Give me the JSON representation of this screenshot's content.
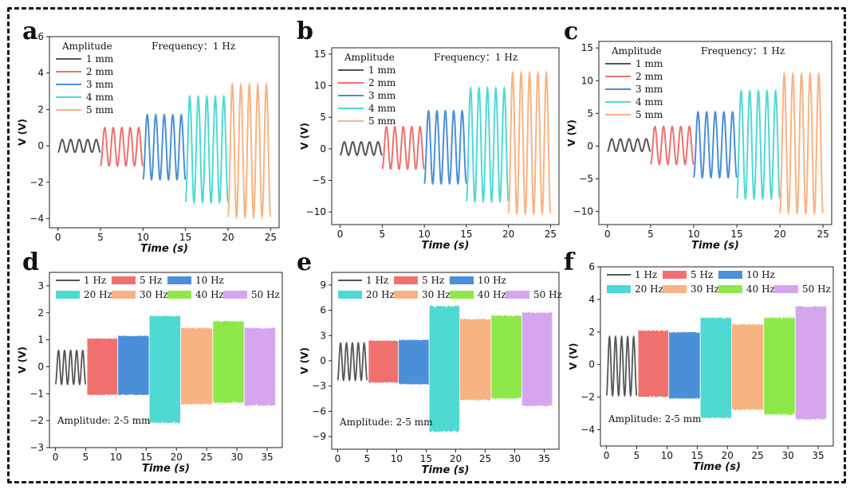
{
  "figure": {
    "series_colors": [
      "#555555",
      "#f07070",
      "#4a8fd8",
      "#4fd9d3",
      "#f8b382",
      "#8ee849",
      "#d5a6ee"
    ]
  },
  "chart_data": [
    {
      "id": "a",
      "type": "line",
      "panel_label": "a",
      "legend_title": "Amplitude",
      "annotation": "Frequency：1 Hz",
      "xlabel": "Time (s)",
      "ylabel": "V (V)",
      "xlim": [
        -1,
        26
      ],
      "ylim": [
        -4.5,
        6
      ],
      "xticks": [
        0,
        5,
        10,
        15,
        20,
        25
      ],
      "yticks": [
        -4,
        -2,
        0,
        2,
        4,
        6
      ],
      "series": [
        {
          "name": "1 mm",
          "x_range": [
            0,
            5
          ],
          "cycles": 5,
          "max": 0.35,
          "min": -0.35
        },
        {
          "name": "2 mm",
          "x_range": [
            5,
            10
          ],
          "cycles": 5,
          "max": 1.0,
          "min": -1.1
        },
        {
          "name": "3 mm",
          "x_range": [
            10,
            15
          ],
          "cycles": 5,
          "max": 1.7,
          "min": -1.85
        },
        {
          "name": "4 mm",
          "x_range": [
            15,
            20
          ],
          "cycles": 5,
          "max": 2.7,
          "min": -3.1
        },
        {
          "name": "5 mm",
          "x_range": [
            20,
            25
          ],
          "cycles": 5,
          "max": 3.35,
          "min": -3.9
        }
      ]
    },
    {
      "id": "b",
      "type": "line",
      "panel_label": "b",
      "legend_title": "Amplitude",
      "annotation": "Frequency：1 Hz",
      "xlabel": "Time (s)",
      "ylabel": "V (V)",
      "xlim": [
        -1,
        26
      ],
      "ylim": [
        -12,
        16
      ],
      "xticks": [
        0,
        5,
        10,
        15,
        20,
        25
      ],
      "yticks": [
        -10,
        -5,
        0,
        5,
        10,
        15
      ],
      "series": [
        {
          "name": "1 mm",
          "x_range": [
            0,
            5
          ],
          "cycles": 5,
          "max": 1.1,
          "min": -1.0
        },
        {
          "name": "2 mm",
          "x_range": [
            5,
            10
          ],
          "cycles": 5,
          "max": 3.5,
          "min": -3.2
        },
        {
          "name": "3 mm",
          "x_range": [
            10,
            15
          ],
          "cycles": 5,
          "max": 6.0,
          "min": -5.5
        },
        {
          "name": "4 mm",
          "x_range": [
            15,
            20
          ],
          "cycles": 5,
          "max": 9.6,
          "min": -8.3
        },
        {
          "name": "5 mm",
          "x_range": [
            20,
            25
          ],
          "cycles": 5,
          "max": 12.0,
          "min": -10.2
        }
      ]
    },
    {
      "id": "c",
      "type": "line",
      "panel_label": "c",
      "legend_title": "Amplitude",
      "annotation": "Frequency：1 Hz",
      "xlabel": "Time (s)",
      "ylabel": "V (V)",
      "xlim": [
        -1,
        26
      ],
      "ylim": [
        -12,
        16
      ],
      "xticks": [
        0,
        5,
        10,
        15,
        20,
        25
      ],
      "yticks": [
        -10,
        -5,
        0,
        5,
        10,
        15
      ],
      "series": [
        {
          "name": "1 mm",
          "x_range": [
            0,
            5
          ],
          "cycles": 5,
          "max": 1.1,
          "min": -0.8
        },
        {
          "name": "2 mm",
          "x_range": [
            5,
            10
          ],
          "cycles": 5,
          "max": 3.0,
          "min": -2.8
        },
        {
          "name": "3 mm",
          "x_range": [
            10,
            15
          ],
          "cycles": 5,
          "max": 5.2,
          "min": -4.8
        },
        {
          "name": "4 mm",
          "x_range": [
            15,
            20
          ],
          "cycles": 5,
          "max": 8.4,
          "min": -8.0
        },
        {
          "name": "5 mm",
          "x_range": [
            20,
            25
          ],
          "cycles": 5,
          "max": 11.0,
          "min": -10.2
        }
      ]
    },
    {
      "id": "d",
      "type": "area",
      "panel_label": "d",
      "annotation": "Amplitude: 2-5 mm",
      "xlabel": "Time (s)",
      "ylabel": "V (V)",
      "xlim": [
        -1,
        37.5
      ],
      "ylim": [
        -3,
        3.5
      ],
      "xticks": [
        0,
        5,
        10,
        15,
        20,
        25,
        30,
        35
      ],
      "yticks": [
        -3,
        -2,
        -1,
        0,
        1,
        2,
        3
      ],
      "series": [
        {
          "name": "1 Hz",
          "x_range": [
            0,
            5
          ],
          "max": 0.6,
          "min": -0.65
        },
        {
          "name": "5 Hz",
          "x_range": [
            5.3,
            10.2
          ],
          "max": 1.05,
          "min": -1.05
        },
        {
          "name": "10 Hz",
          "x_range": [
            10.4,
            15.4
          ],
          "max": 1.15,
          "min": -1.05
        },
        {
          "name": "20 Hz",
          "x_range": [
            15.6,
            20.6
          ],
          "max": 1.9,
          "min": -2.1
        },
        {
          "name": "30 Hz",
          "x_range": [
            20.8,
            25.9
          ],
          "max": 1.45,
          "min": -1.4
        },
        {
          "name": "40 Hz",
          "x_range": [
            26.1,
            31.1
          ],
          "max": 1.7,
          "min": -1.35
        },
        {
          "name": "50 Hz",
          "x_range": [
            31.3,
            36.3
          ],
          "max": 1.45,
          "min": -1.45
        }
      ]
    },
    {
      "id": "e",
      "type": "area",
      "panel_label": "e",
      "annotation": "Amplitude: 2-5 mm",
      "xlabel": "Time (s)",
      "ylabel": "V (V)",
      "xlim": [
        -1,
        37.5
      ],
      "ylim": [
        -10.5,
        10.5
      ],
      "xticks": [
        0,
        5,
        10,
        15,
        20,
        25,
        30,
        35
      ],
      "yticks": [
        -9,
        -6,
        -3,
        0,
        3,
        6,
        9
      ],
      "series": [
        {
          "name": "1 Hz",
          "x_range": [
            0,
            5
          ],
          "max": 2.1,
          "min": -2.3
        },
        {
          "name": "5 Hz",
          "x_range": [
            5.3,
            10.2
          ],
          "max": 2.4,
          "min": -2.6
        },
        {
          "name": "10 Hz",
          "x_range": [
            10.4,
            15.4
          ],
          "max": 2.5,
          "min": -2.8
        },
        {
          "name": "20 Hz",
          "x_range": [
            15.6,
            20.6
          ],
          "max": 6.6,
          "min": -8.5
        },
        {
          "name": "30 Hz",
          "x_range": [
            20.8,
            25.9
          ],
          "max": 5.0,
          "min": -4.7
        },
        {
          "name": "40 Hz",
          "x_range": [
            26.1,
            31.1
          ],
          "max": 5.4,
          "min": -4.5
        },
        {
          "name": "50 Hz",
          "x_range": [
            31.3,
            36.3
          ],
          "max": 5.8,
          "min": -5.4
        }
      ]
    },
    {
      "id": "f",
      "type": "area",
      "panel_label": "f",
      "annotation": "Amplitude: 2-5 mm",
      "xlabel": "Time (s)",
      "ylabel": "V (V)",
      "xlim": [
        -1,
        37.5
      ],
      "ylim": [
        -5,
        6
      ],
      "xticks": [
        0,
        5,
        10,
        15,
        20,
        25,
        30,
        35
      ],
      "yticks": [
        -4,
        -2,
        0,
        2,
        4,
        6
      ],
      "series": [
        {
          "name": "1 Hz",
          "x_range": [
            0,
            5
          ],
          "max": 1.7,
          "min": -1.9
        },
        {
          "name": "5 Hz",
          "x_range": [
            5.3,
            10.2
          ],
          "max": 2.1,
          "min": -2.0
        },
        {
          "name": "10 Hz",
          "x_range": [
            10.4,
            15.4
          ],
          "max": 2.0,
          "min": -2.1
        },
        {
          "name": "20 Hz",
          "x_range": [
            15.6,
            20.6
          ],
          "max": 2.9,
          "min": -3.3
        },
        {
          "name": "30 Hz",
          "x_range": [
            20.8,
            25.9
          ],
          "max": 2.5,
          "min": -2.8
        },
        {
          "name": "40 Hz",
          "x_range": [
            26.1,
            31.1
          ],
          "max": 2.9,
          "min": -3.1
        },
        {
          "name": "50 Hz",
          "x_range": [
            31.3,
            36.3
          ],
          "max": 3.6,
          "min": -3.4
        }
      ]
    }
  ]
}
